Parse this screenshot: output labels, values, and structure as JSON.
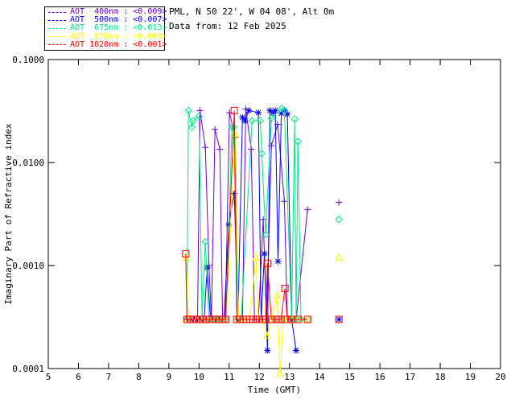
{
  "header": {
    "location": "PML, N 50 22', W 04 08', Alt 0m",
    "date_line": "Data from: 12 Feb 2025"
  },
  "legend": {
    "items": [
      {
        "series": "400nm",
        "label": "AOT  400nm : <0.009>",
        "color": "#6B00C8",
        "marker": "plus"
      },
      {
        "series": "500nm",
        "label": "AOT  500nm : <0.007>",
        "color": "#0000FF",
        "marker": "asterisk"
      },
      {
        "series": "675nm",
        "label": "AOT  675nm : <0.013>",
        "color": "#00E68C",
        "marker": "diamond"
      },
      {
        "series": "870nm",
        "label": "AOT  870nm : <0.001>",
        "color": "#FFFF00",
        "marker": "triangle"
      },
      {
        "series": "1020nm",
        "label": "AOT 1020nm : <0.001>",
        "color": "#FF0000",
        "marker": "square"
      }
    ]
  },
  "chart_data": {
    "type": "line",
    "title": "",
    "xlabel": "Time (GMT)",
    "ylabel": "Imaginary Part of Refractive index",
    "xlim": [
      5,
      20
    ],
    "ylim": [
      0.0001,
      0.1
    ],
    "yscale": "log",
    "grid": false,
    "legend_position": "top-left-outside",
    "xticks": [
      5,
      6,
      7,
      8,
      9,
      10,
      11,
      12,
      13,
      14,
      15,
      16,
      17,
      18,
      19,
      20
    ],
    "yticks": [
      0.1,
      0.01,
      0.001,
      0.0001
    ],
    "ytick_labels": [
      "0.1000",
      "0.0100",
      "0.0010",
      "0.0001"
    ],
    "series": [
      {
        "name": "AOT 400nm",
        "color": "#6B00C8",
        "marker": "plus",
        "points": [
          [
            9.62,
            0.0003
          ],
          [
            9.73,
            0.0003
          ],
          [
            9.84,
            0.0003
          ],
          [
            9.95,
            0.0003
          ],
          [
            10.03,
            0.032
          ],
          [
            10.21,
            0.014
          ],
          [
            10.33,
            0.001
          ],
          [
            10.41,
            0.0003
          ],
          [
            10.53,
            0.021
          ],
          [
            10.69,
            0.0135
          ],
          [
            10.78,
            0.0003
          ],
          [
            10.87,
            0.0003
          ],
          [
            11.01,
            0.0305
          ],
          [
            11.2,
            0.0175
          ],
          [
            11.31,
            0.0003
          ],
          [
            11.44,
            0.0003
          ],
          [
            11.55,
            0.033
          ],
          [
            11.73,
            0.0135
          ],
          [
            11.84,
            0.0003
          ],
          [
            11.97,
            0.0003
          ],
          [
            12.13,
            0.0028
          ],
          [
            12.24,
            0.0003
          ],
          [
            12.4,
            0.0146
          ],
          [
            12.61,
            0.0235
          ],
          [
            12.83,
            0.0042
          ],
          [
            12.93,
            0.0003
          ],
          [
            13.08,
            0.0003
          ],
          [
            13.22,
            0.0003
          ],
          [
            13.6,
            0.0035
          ],
          [
            14.64,
            0.0041
          ]
        ]
      },
      {
        "name": "AOT 500nm",
        "color": "#0000FF",
        "marker": "asterisk",
        "points": [
          [
            9.62,
            0.0003
          ],
          [
            9.73,
            0.0003
          ],
          [
            9.84,
            0.0003
          ],
          [
            9.95,
            0.0003
          ],
          [
            10.06,
            0.0003
          ],
          [
            10.17,
            0.0003
          ],
          [
            10.27,
            0.00095
          ],
          [
            10.38,
            0.0003
          ],
          [
            10.5,
            0.0003
          ],
          [
            10.61,
            0.0003
          ],
          [
            10.72,
            0.0003
          ],
          [
            10.83,
            0.0003
          ],
          [
            10.99,
            0.0025
          ],
          [
            11.17,
            0.005
          ],
          [
            11.29,
            0.0003
          ],
          [
            11.44,
            0.0275
          ],
          [
            11.52,
            0.0255
          ],
          [
            11.65,
            0.032
          ],
          [
            11.97,
            0.0305
          ],
          [
            12.06,
            0.0003
          ],
          [
            12.17,
            0.0013
          ],
          [
            12.27,
            0.00015
          ],
          [
            12.35,
            0.032
          ],
          [
            12.45,
            0.0305
          ],
          [
            12.53,
            0.032
          ],
          [
            12.62,
            0.0011
          ],
          [
            12.73,
            0.03
          ],
          [
            12.83,
            0.032
          ],
          [
            12.93,
            0.0295
          ],
          [
            13.07,
            0.0003
          ],
          [
            13.22,
            0.00015
          ],
          [
            14.64,
            0.0003
          ]
        ]
      },
      {
        "name": "AOT 675nm",
        "color": "#00E68C",
        "marker": "diamond",
        "points": [
          [
            9.6,
            0.0003
          ],
          [
            9.65,
            0.032
          ],
          [
            9.76,
            0.022
          ],
          [
            9.81,
            0.0255
          ],
          [
            10.0,
            0.028
          ],
          [
            10.1,
            0.0003
          ],
          [
            10.21,
            0.0017
          ],
          [
            10.33,
            0.0003
          ],
          [
            10.45,
            0.0003
          ],
          [
            10.56,
            0.0003
          ],
          [
            10.67,
            0.0003
          ],
          [
            10.78,
            0.0003
          ],
          [
            10.9,
            0.0003
          ],
          [
            11.09,
            0.022
          ],
          [
            11.15,
            0.022
          ],
          [
            11.29,
            0.0003
          ],
          [
            11.4,
            0.0003
          ],
          [
            11.76,
            0.0255
          ],
          [
            12.03,
            0.0255
          ],
          [
            12.08,
            0.0122
          ],
          [
            12.21,
            0.002
          ],
          [
            12.4,
            0.027
          ],
          [
            12.75,
            0.0335
          ],
          [
            12.83,
            0.032
          ],
          [
            13.07,
            0.0003
          ],
          [
            13.17,
            0.0265
          ],
          [
            13.22,
            0.0003
          ],
          [
            13.28,
            0.016
          ],
          [
            13.38,
            0.0003
          ],
          [
            13.6,
            0.0003
          ],
          [
            14.64,
            0.0028
          ]
        ]
      },
      {
        "name": "AOT 870nm",
        "color": "#FFFF00",
        "marker": "triangle",
        "points": [
          [
            9.57,
            0.0012
          ],
          [
            9.65,
            0.0003
          ],
          [
            9.76,
            0.0003
          ],
          [
            9.92,
            0.0003
          ],
          [
            10.13,
            0.0003
          ],
          [
            10.35,
            0.0003
          ],
          [
            10.56,
            0.0003
          ],
          [
            10.77,
            0.0003
          ],
          [
            10.9,
            0.0003
          ],
          [
            11.2,
            0.019
          ],
          [
            11.31,
            0.0003
          ],
          [
            11.51,
            0.0003
          ],
          [
            11.68,
            0.0003
          ],
          [
            11.89,
            0.0012
          ],
          [
            11.97,
            0.0003
          ],
          [
            12.11,
            0.0003
          ],
          [
            12.27,
            0.00021
          ],
          [
            12.4,
            0.0003
          ],
          [
            12.59,
            0.00051
          ],
          [
            12.69,
            9e-05
          ],
          [
            12.79,
            0.0003
          ],
          [
            12.93,
            0.0003
          ],
          [
            13.07,
            0.0003
          ],
          [
            13.28,
            0.0003
          ],
          [
            13.6,
            0.0003
          ],
          [
            14.64,
            0.0012
          ]
        ]
      },
      {
        "name": "AOT 1020nm",
        "color": "#FF0000",
        "marker": "square",
        "points": [
          [
            9.56,
            0.0013
          ],
          [
            9.6,
            0.0003
          ],
          [
            9.71,
            0.0003
          ],
          [
            9.81,
            0.0003
          ],
          [
            9.92,
            0.0003
          ],
          [
            10.03,
            0.0003
          ],
          [
            10.13,
            0.0003
          ],
          [
            10.24,
            0.0003
          ],
          [
            10.35,
            0.0003
          ],
          [
            10.45,
            0.0003
          ],
          [
            10.56,
            0.0003
          ],
          [
            10.67,
            0.0003
          ],
          [
            10.77,
            0.0003
          ],
          [
            10.88,
            0.0003
          ],
          [
            11.17,
            0.032
          ],
          [
            11.25,
            0.0003
          ],
          [
            11.36,
            0.0003
          ],
          [
            11.47,
            0.0003
          ],
          [
            11.57,
            0.0003
          ],
          [
            11.68,
            0.0003
          ],
          [
            11.79,
            0.0003
          ],
          [
            11.89,
            0.0003
          ],
          [
            12.0,
            0.0003
          ],
          [
            12.11,
            0.0003
          ],
          [
            12.21,
            0.0003
          ],
          [
            12.27,
            0.00105
          ],
          [
            12.4,
            0.0003
          ],
          [
            12.56,
            0.0003
          ],
          [
            12.61,
            0.0003
          ],
          [
            12.66,
            0.0003
          ],
          [
            12.72,
            0.0003
          ],
          [
            12.85,
            0.0006
          ],
          [
            12.93,
            0.0003
          ],
          [
            13.07,
            0.0003
          ],
          [
            13.28,
            0.0003
          ],
          [
            13.6,
            0.0003
          ],
          [
            14.64,
            0.0003
          ]
        ]
      }
    ]
  }
}
